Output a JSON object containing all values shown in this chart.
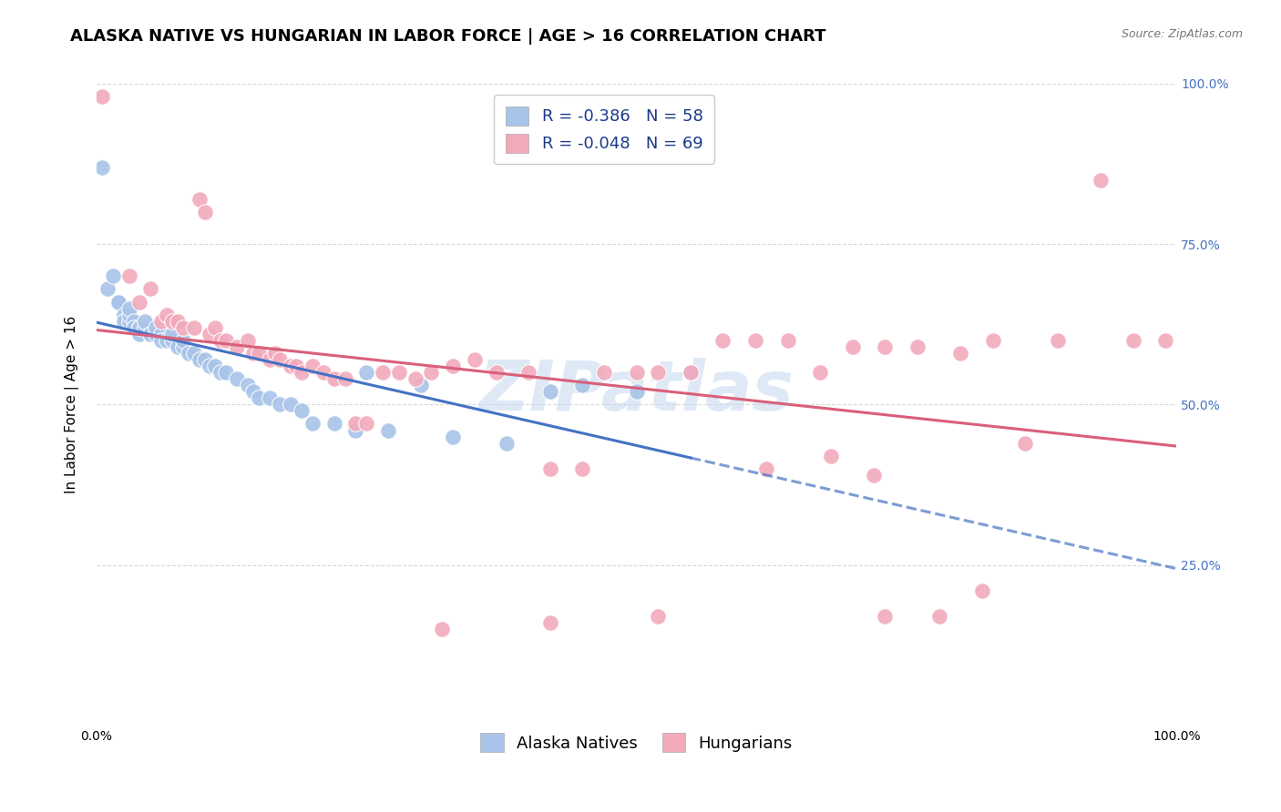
{
  "title": "ALASKA NATIVE VS HUNGARIAN IN LABOR FORCE | AGE > 16 CORRELATION CHART",
  "source": "Source: ZipAtlas.com",
  "ylabel": "In Labor Force | Age > 16",
  "xlim": [
    0.0,
    1.0
  ],
  "ylim": [
    0.0,
    1.0
  ],
  "alaska_color": "#a8c4e8",
  "hungarian_color": "#f2aabb",
  "alaska_line_color": "#4472c4",
  "hungarian_line_color": "#d9607a",
  "watermark": "ZIPatlas",
  "alaska_R": "-0.386",
  "alaska_N": "58",
  "hungarian_R": "-0.048",
  "hungarian_N": "69",
  "alaska_x": [
    0.005,
    0.01,
    0.015,
    0.02,
    0.02,
    0.025,
    0.025,
    0.03,
    0.03,
    0.03,
    0.035,
    0.035,
    0.04,
    0.04,
    0.04,
    0.045,
    0.045,
    0.05,
    0.05,
    0.05,
    0.055,
    0.055,
    0.06,
    0.06,
    0.065,
    0.07,
    0.07,
    0.075,
    0.08,
    0.08,
    0.085,
    0.09,
    0.095,
    0.1,
    0.105,
    0.11,
    0.115,
    0.12,
    0.13,
    0.14,
    0.145,
    0.15,
    0.16,
    0.17,
    0.18,
    0.19,
    0.2,
    0.22,
    0.24,
    0.25,
    0.27,
    0.3,
    0.33,
    0.38,
    0.42,
    0.45,
    0.5,
    0.55
  ],
  "alaska_y": [
    0.87,
    0.68,
    0.7,
    0.66,
    0.66,
    0.64,
    0.63,
    0.63,
    0.64,
    0.65,
    0.63,
    0.62,
    0.62,
    0.61,
    0.62,
    0.62,
    0.63,
    0.61,
    0.61,
    0.61,
    0.61,
    0.62,
    0.61,
    0.6,
    0.6,
    0.6,
    0.61,
    0.59,
    0.59,
    0.6,
    0.58,
    0.58,
    0.57,
    0.57,
    0.56,
    0.56,
    0.55,
    0.55,
    0.54,
    0.53,
    0.52,
    0.51,
    0.51,
    0.5,
    0.5,
    0.49,
    0.47,
    0.47,
    0.46,
    0.55,
    0.46,
    0.53,
    0.45,
    0.44,
    0.52,
    0.53,
    0.52,
    0.55
  ],
  "hungarian_x": [
    0.005,
    0.03,
    0.04,
    0.05,
    0.06,
    0.065,
    0.07,
    0.075,
    0.08,
    0.09,
    0.095,
    0.1,
    0.105,
    0.11,
    0.115,
    0.12,
    0.13,
    0.14,
    0.145,
    0.15,
    0.16,
    0.165,
    0.17,
    0.18,
    0.185,
    0.19,
    0.2,
    0.21,
    0.22,
    0.23,
    0.24,
    0.25,
    0.265,
    0.28,
    0.295,
    0.31,
    0.33,
    0.35,
    0.37,
    0.4,
    0.42,
    0.45,
    0.47,
    0.5,
    0.52,
    0.55,
    0.58,
    0.61,
    0.64,
    0.67,
    0.7,
    0.73,
    0.76,
    0.8,
    0.83,
    0.86,
    0.89,
    0.93,
    0.96,
    0.99,
    0.32,
    0.42,
    0.52,
    0.62,
    0.72,
    0.82,
    0.68,
    0.73,
    0.78
  ],
  "hungarian_y": [
    0.98,
    0.7,
    0.66,
    0.68,
    0.63,
    0.64,
    0.63,
    0.63,
    0.62,
    0.62,
    0.82,
    0.8,
    0.61,
    0.62,
    0.6,
    0.6,
    0.59,
    0.6,
    0.58,
    0.58,
    0.57,
    0.58,
    0.57,
    0.56,
    0.56,
    0.55,
    0.56,
    0.55,
    0.54,
    0.54,
    0.47,
    0.47,
    0.55,
    0.55,
    0.54,
    0.55,
    0.56,
    0.57,
    0.55,
    0.55,
    0.4,
    0.4,
    0.55,
    0.55,
    0.55,
    0.55,
    0.6,
    0.6,
    0.6,
    0.55,
    0.59,
    0.59,
    0.59,
    0.58,
    0.6,
    0.44,
    0.6,
    0.85,
    0.6,
    0.6,
    0.15,
    0.16,
    0.17,
    0.4,
    0.39,
    0.21,
    0.42,
    0.17,
    0.17
  ],
  "background_color": "#ffffff",
  "grid_color": "#d8d8d8",
  "title_fontsize": 13,
  "axis_label_fontsize": 11,
  "tick_fontsize": 10,
  "legend_fontsize": 13
}
